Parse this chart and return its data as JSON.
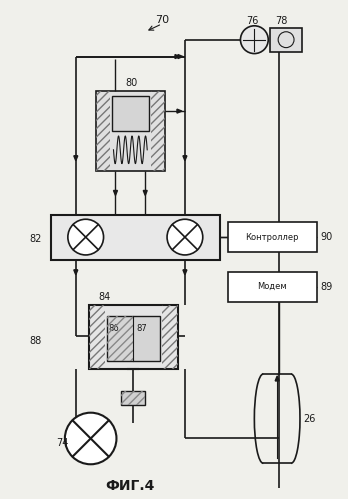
{
  "bg_color": "#f0f0eb",
  "line_color": "#1a1a1a",
  "title": "ФИГ.4",
  "controller_text": "Контроллер",
  "modem_text": "Модем",
  "fig_width": 3.48,
  "fig_height": 4.99,
  "dpi": 100
}
